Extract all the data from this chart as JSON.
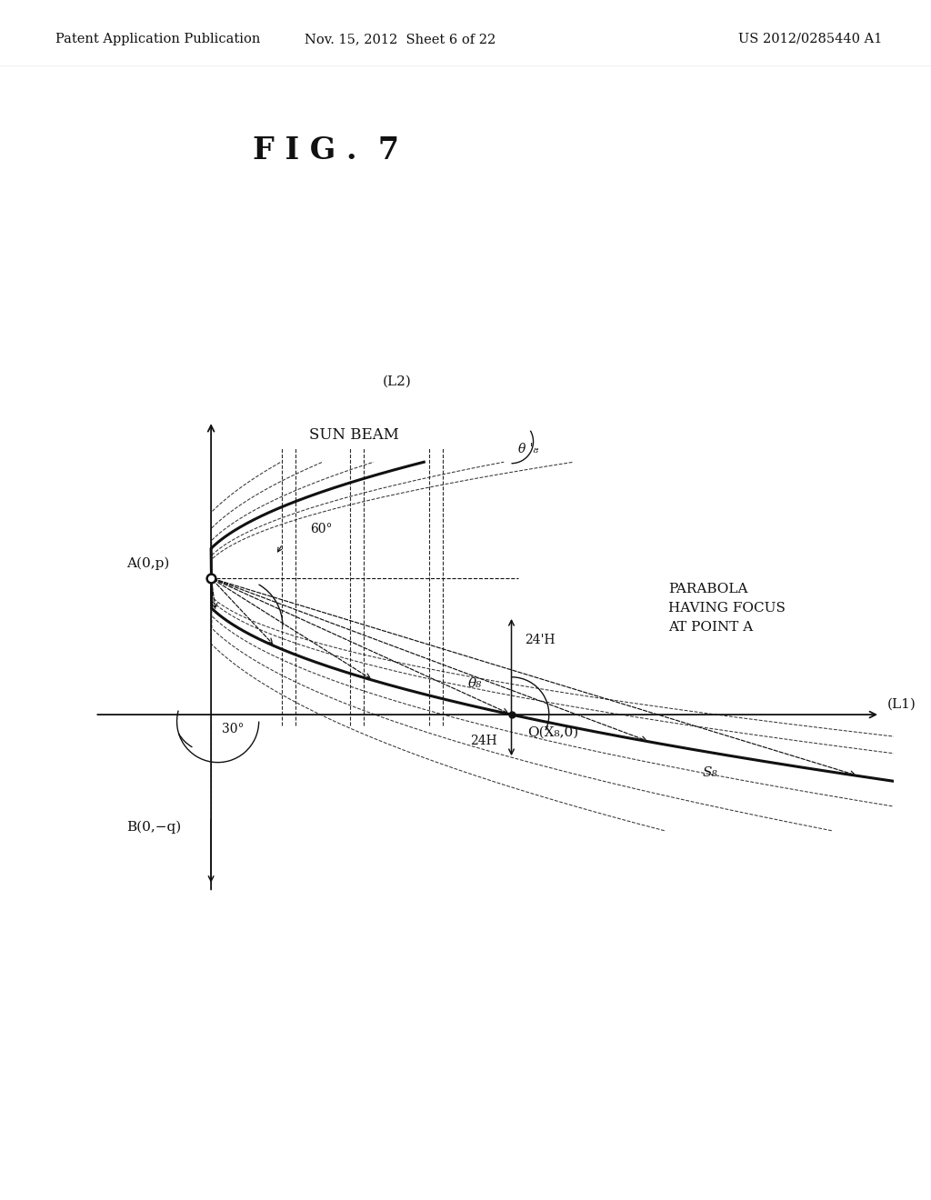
{
  "fig_title": "F I G .  7",
  "header_left": "Patent Application Publication",
  "header_mid": "Nov. 15, 2012  Sheet 6 of 22",
  "header_right": "US 2012/0285440 A1",
  "bg_color": "#ffffff",
  "text_color": "#111111",
  "diagram_color": "#111111",
  "parabola_note": "PARABOLA\nHAVING FOCUS\nAT POINT A",
  "sun_beam_label": "SUN BEAM",
  "L1_label": "(L1)",
  "L2_label": "(L2)",
  "S8_label": "S₈",
  "angle_30": "30°",
  "angle_60": "60°",
  "theta_8": "θ₈",
  "theta_8_prime": "θ '₈",
  "label_A": "A(0,p)",
  "label_B": "B(0,−q)",
  "label_Q": "Q(X₈,0)",
  "label_24H": "24H",
  "label_24pH": "24'H"
}
